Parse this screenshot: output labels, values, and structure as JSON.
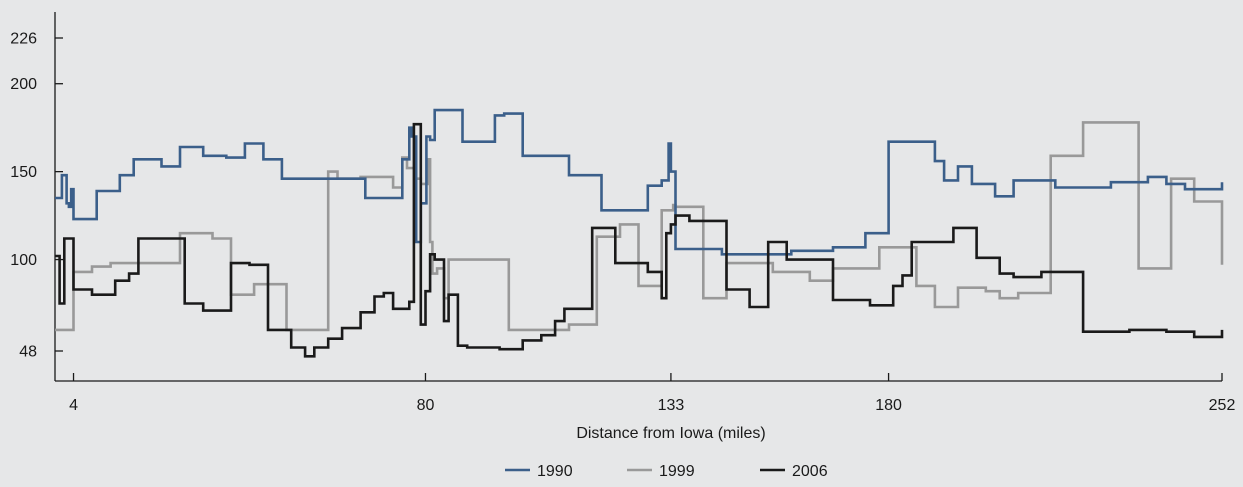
{
  "chart_data": {
    "type": "line",
    "step": true,
    "title": "",
    "xlabel": "Distance from Iowa (miles)",
    "ylabel": "",
    "xlim": [
      0,
      252
    ],
    "ylim": [
      30,
      240
    ],
    "x_ticks": [
      4,
      80,
      133,
      180,
      252
    ],
    "y_ticks": [
      48,
      100,
      150,
      200,
      226
    ],
    "grid": false,
    "legend_position": "bottom-center",
    "series": [
      {
        "name": "1990",
        "color": "#3b5f8a",
        "x": [
          0,
          1.5,
          2.5,
          3,
          3.5,
          4,
          5,
          9,
          14,
          17,
          23,
          27,
          32,
          37,
          41,
          45,
          49,
          53,
          59,
          61,
          67,
          72,
          75,
          76.5,
          77,
          77.5,
          78,
          79,
          80.2,
          81,
          82,
          83,
          88,
          95,
          97,
          101,
          107,
          111,
          118,
          123,
          128,
          131,
          132.5,
          133,
          134,
          144,
          148,
          159,
          168,
          175,
          177,
          180,
          186,
          190,
          192,
          195,
          198,
          203,
          207,
          210,
          216,
          222,
          228,
          236,
          240,
          244,
          252
        ],
        "y": [
          135,
          148,
          132,
          130,
          140,
          123,
          123,
          139,
          148,
          157,
          153,
          164,
          159,
          158,
          166,
          157,
          146,
          146,
          146,
          146,
          135,
          135,
          157,
          175,
          170,
          170,
          110,
          132,
          170,
          168,
          185,
          185,
          167,
          182,
          183,
          159,
          159,
          148,
          128,
          128,
          142,
          145,
          166,
          150,
          106,
          103,
          103,
          105,
          107,
          115,
          115,
          167,
          167,
          156,
          145,
          153,
          143,
          136,
          145,
          145,
          141,
          141,
          144,
          147,
          143,
          140,
          144
        ]
      },
      {
        "name": "1999",
        "color": "#999999",
        "x": [
          0,
          4,
          8,
          12,
          18,
          21,
          27,
          34,
          38,
          43,
          47,
          50,
          55,
          59,
          61,
          66,
          70,
          73,
          75,
          76,
          78,
          79,
          80.5,
          81,
          81.5,
          82.5,
          84,
          85,
          98,
          108,
          111,
          117,
          122,
          126,
          128,
          131,
          133.5,
          134,
          140,
          145,
          150,
          155,
          163,
          168,
          176,
          178,
          182,
          186,
          190,
          195,
          197,
          201,
          204,
          208,
          215,
          222,
          229,
          234,
          237,
          241,
          246,
          252
        ],
        "y": [
          60,
          93,
          96,
          98,
          98,
          98,
          115,
          112,
          80,
          86,
          86,
          60,
          60,
          150,
          146,
          147,
          147,
          141,
          158,
          152,
          146,
          143,
          157,
          110,
          92,
          95,
          78,
          100,
          60,
          60,
          63,
          113,
          120,
          85,
          85,
          128,
          131,
          130,
          78,
          98,
          98,
          93,
          88,
          95,
          95,
          107,
          107,
          85,
          73,
          84,
          84,
          82,
          78,
          81,
          159,
          178,
          178,
          95,
          95,
          146,
          133,
          97
        ]
      },
      {
        "name": "2006",
        "color": "#1a1a1a",
        "x": [
          0,
          1,
          2,
          4,
          8,
          13,
          16,
          18,
          21,
          28,
          32,
          38,
          42,
          46,
          51,
          54,
          56,
          59,
          62,
          66,
          69,
          71,
          73,
          75,
          76.5,
          77.5,
          79,
          80,
          81,
          82,
          84,
          85,
          87,
          89,
          90,
          94,
          96,
          98,
          101,
          103,
          105,
          108,
          110,
          116,
          121,
          126,
          128,
          131,
          132,
          133,
          134,
          137,
          145,
          150,
          154,
          158,
          168,
          176,
          181,
          183,
          185,
          190,
          194,
          199,
          204,
          207,
          213,
          222,
          232,
          240,
          246,
          252
        ],
        "y": [
          102,
          75,
          112,
          83,
          80,
          88,
          92,
          112,
          112,
          75,
          71,
          98,
          97,
          60,
          50,
          45,
          50,
          55,
          61,
          70,
          79,
          81,
          72,
          72,
          76,
          177,
          63,
          82,
          103,
          100,
          65,
          80,
          51,
          50,
          50,
          50,
          49,
          49,
          54,
          54,
          57,
          65,
          72,
          118,
          98,
          98,
          93,
          78,
          115,
          120,
          125,
          122,
          83,
          73,
          110,
          100,
          77,
          74,
          85,
          91,
          110,
          110,
          118,
          101,
          92,
          90,
          93,
          59,
          60,
          59,
          56,
          60
        ]
      }
    ]
  }
}
